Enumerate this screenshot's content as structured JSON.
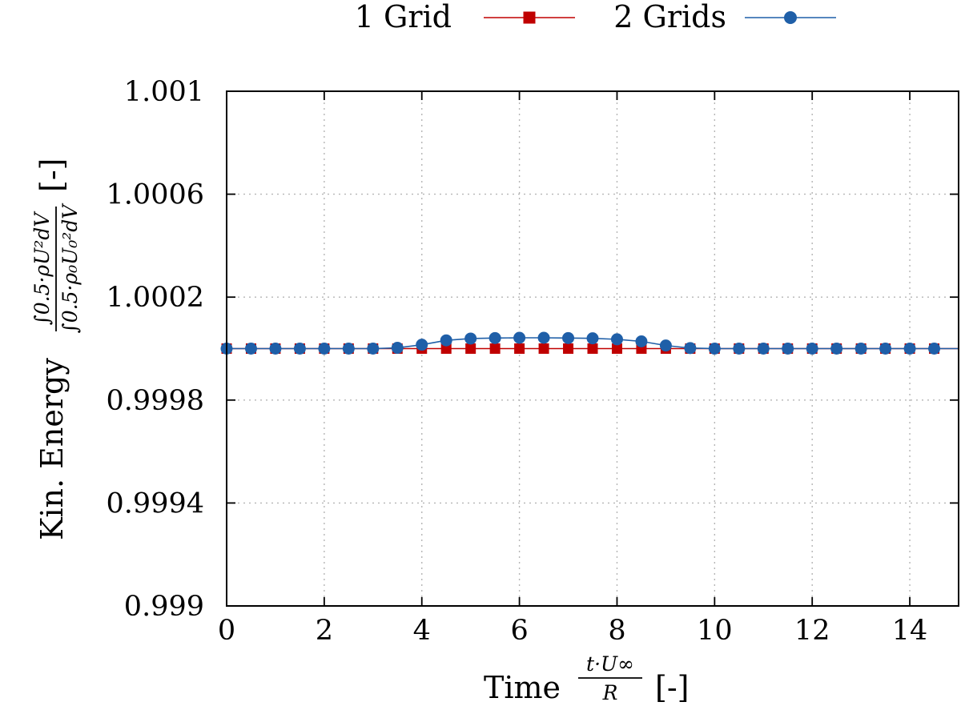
{
  "chart_data": {
    "type": "line",
    "title": "",
    "xlabel": {
      "prefix": "Time",
      "fraction_numerator": "t·U∞",
      "fraction_denominator": "R",
      "unit": "[-]"
    },
    "ylabel": {
      "prefix": "Kin. Energy",
      "fraction_numerator": "∫0.5·ρU²dV",
      "fraction_denominator": "∫0.5·ρ₀U₀²dV",
      "unit": "[-]"
    },
    "xlim": [
      0,
      15
    ],
    "ylim": [
      0.999,
      1.001
    ],
    "x_ticks": [
      0,
      2,
      4,
      6,
      8,
      10,
      12,
      14
    ],
    "x_tick_labels": [
      "0",
      "2",
      "4",
      "6",
      "8",
      "10",
      "12",
      "14"
    ],
    "y_ticks": [
      0.999,
      0.9994,
      0.9998,
      1.0002,
      1.0006,
      1.001
    ],
    "y_tick_labels": [
      "0.999",
      "0.9994",
      "0.9998",
      "1.0002",
      "1.0006",
      "1.001"
    ],
    "grid": true,
    "legend_position": "top-center",
    "series": [
      {
        "name": "1 Grid",
        "color": "#c00000",
        "marker": "square",
        "x": [
          0,
          0.5,
          1,
          1.5,
          2,
          2.5,
          3,
          3.5,
          4,
          4.5,
          5,
          5.5,
          6,
          6.5,
          7,
          7.5,
          8,
          8.5,
          9,
          9.5,
          10,
          10.5,
          11,
          11.5,
          12,
          12.5,
          13,
          13.5,
          14,
          14.5
        ],
        "y": [
          1.0,
          1.0,
          1.0,
          1.0,
          1.0,
          1.0,
          1.0,
          1.0,
          1.0,
          1.0,
          1.0,
          1.0,
          1.0,
          1.0,
          1.0,
          1.0,
          1.0,
          1.0,
          1.0,
          1.0,
          1.0,
          1.0,
          1.0,
          1.0,
          1.0,
          1.0,
          1.0,
          1.0,
          1.0,
          1.0
        ]
      },
      {
        "name": "2 Grids",
        "color": "#1f5fa8",
        "marker": "circle",
        "x": [
          0,
          0.5,
          1,
          1.5,
          2,
          2.5,
          3,
          3.5,
          4,
          4.5,
          5,
          5.5,
          6,
          6.5,
          7,
          7.5,
          8,
          8.5,
          9,
          9.5,
          10,
          10.5,
          11,
          11.5,
          12,
          12.5,
          13,
          13.5,
          14,
          14.5
        ],
        "y": [
          1.0,
          1.0,
          1.0,
          1.0,
          1.0,
          1.0,
          1.0,
          1.000003,
          1.000015,
          1.000032,
          1.000039,
          1.000041,
          1.000042,
          1.000042,
          1.000041,
          1.00004,
          1.000036,
          1.000028,
          1.000012,
          1.000002,
          1.0,
          1.0,
          1.0,
          1.0,
          1.0,
          1.0,
          1.0,
          1.0,
          1.0,
          1.0
        ]
      }
    ]
  }
}
